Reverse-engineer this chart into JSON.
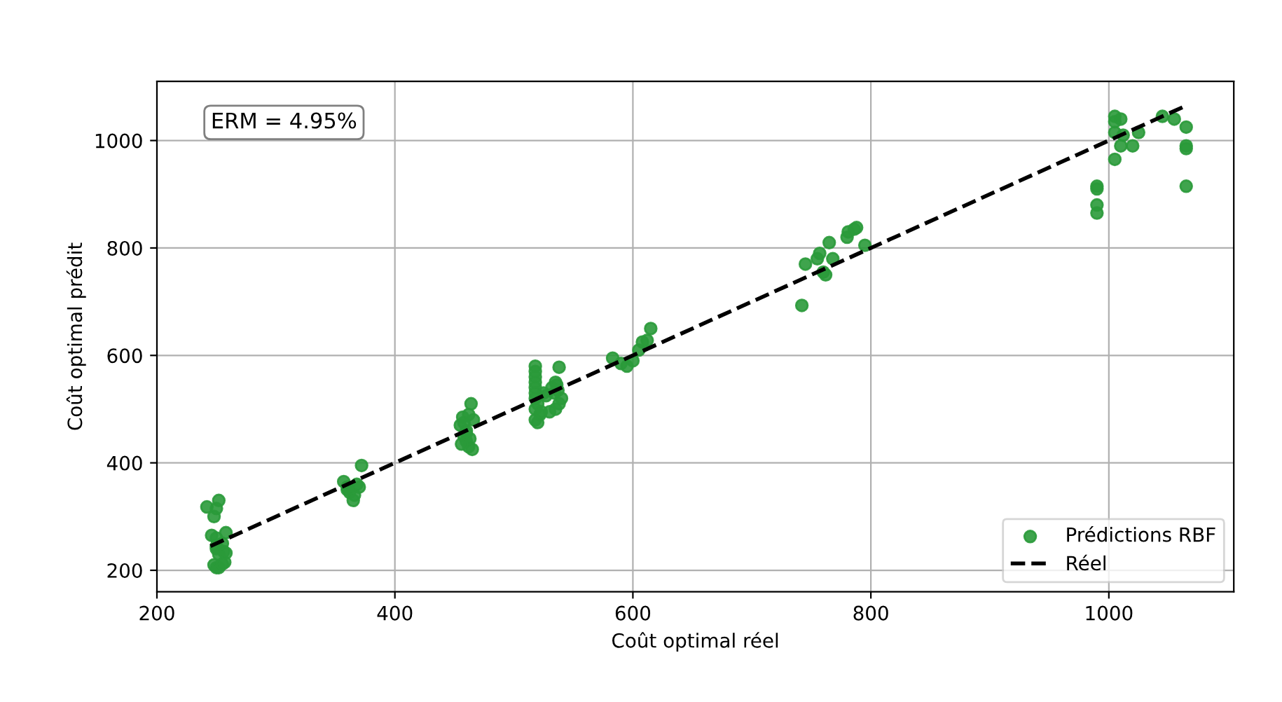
{
  "chart_data": {
    "type": "scatter",
    "xlabel": "Coût optimal réel",
    "ylabel": "Coût optimal prédit",
    "annotations": [
      "ERM = 4.95%"
    ],
    "xlim": [
      200,
      1105
    ],
    "ylim": [
      160,
      1110
    ],
    "xticks": [
      200,
      400,
      600,
      800,
      1000
    ],
    "yticks": [
      200,
      400,
      600,
      800,
      1000
    ],
    "grid": true,
    "legend": "bottom right",
    "series": [
      {
        "name": "Prédictions RBF",
        "color": "#2a9a3a",
        "marker": "circle",
        "x": [
          242,
          250,
          252,
          248,
          246,
          250,
          255,
          258,
          250,
          252,
          257,
          248,
          250,
          256,
          252,
          250,
          258,
          255,
          357,
          360,
          362,
          365,
          368,
          370,
          372,
          366,
          360,
          455,
          457,
          458,
          460,
          462,
          463,
          465,
          460,
          458,
          462,
          464,
          466,
          460,
          456,
          518,
          518,
          518,
          518,
          518,
          518,
          518,
          518,
          518,
          520,
          520,
          522,
          525,
          530,
          532,
          535,
          535,
          537,
          538,
          540,
          536,
          534,
          527,
          523,
          538,
          583,
          590,
          595,
          600,
          605,
          608,
          612,
          615,
          742,
          745,
          755,
          757,
          760,
          762,
          765,
          768,
          780,
          781,
          786,
          788,
          795,
          990,
          990,
          990,
          990,
          1005,
          1005,
          1005,
          1005,
          1010,
          1010,
          1012,
          1020,
          1025,
          1045,
          1055,
          1065,
          1065,
          1065,
          1065
        ],
        "values": [
          318,
          315,
          330,
          300,
          265,
          260,
          250,
          270,
          240,
          230,
          215,
          210,
          205,
          235,
          205,
          245,
          232,
          212,
          365,
          355,
          345,
          330,
          360,
          355,
          395,
          340,
          350,
          470,
          485,
          450,
          440,
          430,
          445,
          425,
          460,
          475,
          490,
          510,
          480,
          455,
          435,
          580,
          570,
          560,
          550,
          540,
          530,
          520,
          500,
          480,
          475,
          510,
          490,
          530,
          495,
          540,
          500,
          550,
          535,
          510,
          520,
          545,
          530,
          525,
          495,
          578,
          595,
          585,
          580,
          590,
          610,
          625,
          628,
          650,
          693,
          770,
          780,
          790,
          755,
          750,
          810,
          780,
          820,
          830,
          835,
          838,
          805,
          915,
          910,
          880,
          865,
          1045,
          1035,
          1015,
          965,
          1040,
          990,
          1010,
          990,
          1015,
          1045,
          1040,
          1025,
          990,
          985,
          915
        ]
      },
      {
        "name": "Réel",
        "type": "line",
        "color": "#000000",
        "line_style": "dashed",
        "marker": "none",
        "x": [
          245,
          1065
        ],
        "values": [
          245,
          1065
        ]
      }
    ]
  }
}
